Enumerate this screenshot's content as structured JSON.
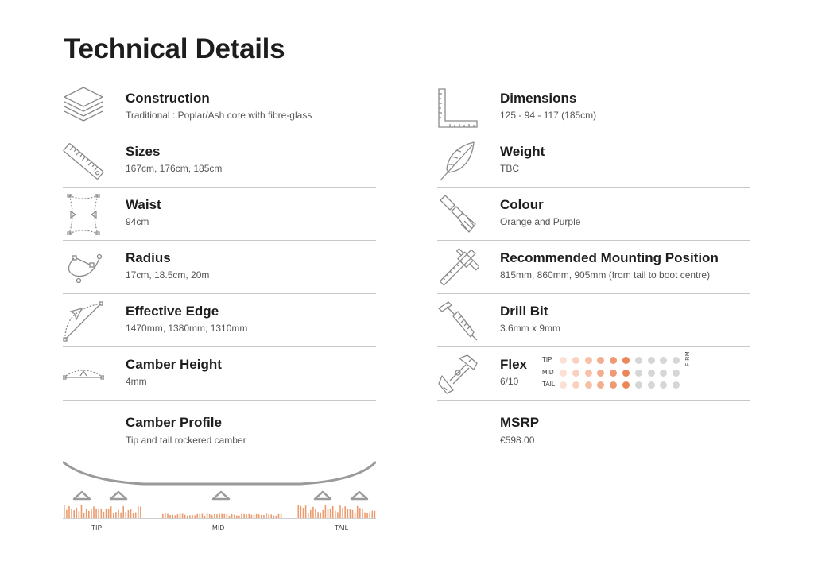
{
  "page_title": "Technical Details",
  "accent_color": "#e98a55",
  "left_specs": [
    {
      "icon": "layers-icon",
      "label": "Construction",
      "value": "Traditional : Poplar/Ash core with fibre-glass"
    },
    {
      "icon": "ruler-icon",
      "label": "Sizes",
      "value": "167cm, 176cm, 185cm"
    },
    {
      "icon": "waist-icon",
      "label": "Waist",
      "value": "94cm"
    },
    {
      "icon": "bezier-curve-icon",
      "label": "Radius",
      "value": "17cm, 18.5cm, 20m"
    },
    {
      "icon": "edge-icon",
      "label": "Effective Edge",
      "value": "1470mm, 1380mm, 1310mm"
    },
    {
      "icon": "camber-icon",
      "label": "Camber Height",
      "value": "4mm"
    }
  ],
  "right_specs": [
    {
      "icon": "set-square-icon",
      "label": "Dimensions",
      "value": "125 - 94 - 117 (185cm)"
    },
    {
      "icon": "feather-icon",
      "label": "Weight",
      "value": "TBC"
    },
    {
      "icon": "paintbrush-icon",
      "label": "Colour",
      "value": "Orange and Purple"
    },
    {
      "icon": "caliper-icon",
      "label": "Recommended Mounting Position",
      "value": "815mm, 860mm, 905mm (from tail to boot centre)"
    },
    {
      "icon": "drill-bit-icon",
      "label": "Drill Bit",
      "value": "3.6mm x 9mm"
    }
  ],
  "flex": {
    "icon": "hand-grip-icon",
    "label": "Flex",
    "value": "6/10",
    "level": 6,
    "total": 10,
    "rows": [
      "TIP",
      "MID",
      "TAIL"
    ],
    "end_label": "FIRM",
    "dot_colors": [
      "#fbe0d3",
      "#f9d2bf",
      "#f6c1a7",
      "#f2ae8e",
      "#ee9a74",
      "#ea8658",
      "#d6d6d6",
      "#d6d6d6",
      "#d6d6d6",
      "#d6d6d6"
    ]
  },
  "camber_profile": {
    "label": "Camber Profile",
    "value": "Tip and tail rockered camber",
    "zone_labels": {
      "tip": "TIP",
      "mid": "MID",
      "tail": "TAIL"
    }
  },
  "msrp": {
    "label": "MSRP",
    "value": "€598.00"
  }
}
